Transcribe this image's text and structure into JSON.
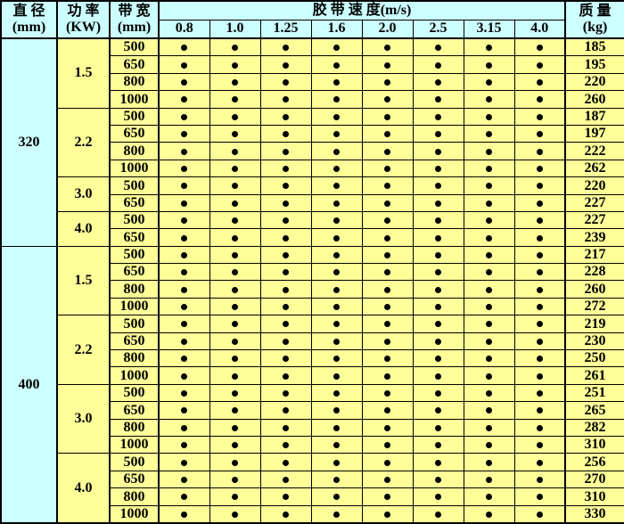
{
  "table": {
    "colors": {
      "header_bg": "#CCFFFF",
      "diameter_col_bg": "#CCFFFF",
      "data_bg": "#FFFF99",
      "border": "#000000",
      "dot": "#000000"
    },
    "dot_symbol": "●",
    "headers": {
      "diameter": {
        "line1": "直 径",
        "line2": "(mm)"
      },
      "power": {
        "line1": "功 率",
        "line2": "(KW)"
      },
      "bandwidth": {
        "line1": "带 宽",
        "line2": "(mm)"
      },
      "speed_group": "胶 带 速 度(m/s)",
      "speeds": [
        "0.8",
        "1.0",
        "1.25",
        "1.6",
        "2.0",
        "2.5",
        "3.15",
        "4.0"
      ],
      "mass": {
        "line1": "质 量",
        "line2": "(kg)"
      }
    },
    "groups": [
      {
        "diameter": "320",
        "powers": [
          {
            "power": "1.5",
            "rows": [
              {
                "bandwidth": "500",
                "mass": "185"
              },
              {
                "bandwidth": "650",
                "mass": "195"
              },
              {
                "bandwidth": "800",
                "mass": "220"
              },
              {
                "bandwidth": "1000",
                "mass": "260"
              }
            ]
          },
          {
            "power": "2.2",
            "rows": [
              {
                "bandwidth": "500",
                "mass": "187"
              },
              {
                "bandwidth": "650",
                "mass": "197"
              },
              {
                "bandwidth": "800",
                "mass": "222"
              },
              {
                "bandwidth": "1000",
                "mass": "262"
              }
            ]
          },
          {
            "power": "3.0",
            "rows": [
              {
                "bandwidth": "500",
                "mass": "220"
              },
              {
                "bandwidth": "650",
                "mass": "227"
              }
            ]
          },
          {
            "power": "4.0",
            "rows": [
              {
                "bandwidth": "500",
                "mass": "227"
              },
              {
                "bandwidth": "650",
                "mass": "239"
              }
            ]
          }
        ]
      },
      {
        "diameter": "400",
        "powers": [
          {
            "power": "1.5",
            "rows": [
              {
                "bandwidth": "500",
                "mass": "217"
              },
              {
                "bandwidth": "650",
                "mass": "228"
              },
              {
                "bandwidth": "800",
                "mass": "260"
              },
              {
                "bandwidth": "1000",
                "mass": "272"
              }
            ]
          },
          {
            "power": "2.2",
            "rows": [
              {
                "bandwidth": "500",
                "mass": "219"
              },
              {
                "bandwidth": "650",
                "mass": "230"
              },
              {
                "bandwidth": "800",
                "mass": "250"
              },
              {
                "bandwidth": "1000",
                "mass": "261"
              }
            ]
          },
          {
            "power": "3.0",
            "rows": [
              {
                "bandwidth": "500",
                "mass": "251"
              },
              {
                "bandwidth": "650",
                "mass": "265"
              },
              {
                "bandwidth": "800",
                "mass": "282"
              },
              {
                "bandwidth": "1000",
                "mass": "310"
              }
            ]
          },
          {
            "power": "4.0",
            "rows": [
              {
                "bandwidth": "500",
                "mass": "256"
              },
              {
                "bandwidth": "650",
                "mass": "270"
              },
              {
                "bandwidth": "800",
                "mass": "310"
              },
              {
                "bandwidth": "1000",
                "mass": "330"
              }
            ]
          }
        ]
      }
    ]
  }
}
